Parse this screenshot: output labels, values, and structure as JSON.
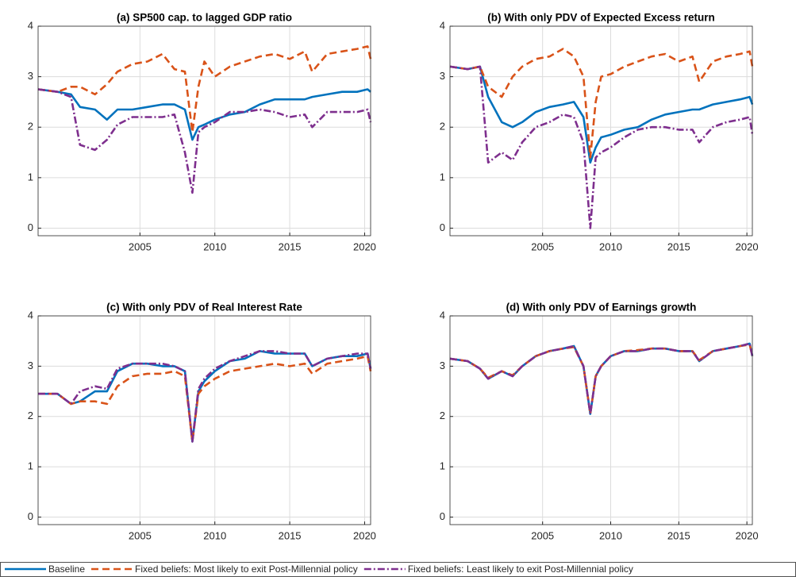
{
  "chart_data": [
    {
      "type": "line",
      "title": "(a) SP500 cap. to lagged GDP ratio",
      "x": [
        1998.2,
        1999.5,
        2000.4,
        2001,
        2002,
        2002.8,
        2003.5,
        2004.5,
        2005.5,
        2006.5,
        2007.3,
        2008,
        2008.5,
        2008.9,
        2009.3,
        2010,
        2011,
        2012,
        2013,
        2014,
        2015,
        2016,
        2016.5,
        2017.5,
        2018.5,
        2019.5,
        2020.2,
        2020.4
      ],
      "series": [
        {
          "name": "Baseline",
          "color": "#0072bd",
          "dash": "solid",
          "values": [
            2.75,
            2.7,
            2.65,
            2.4,
            2.35,
            2.15,
            2.35,
            2.35,
            2.4,
            2.45,
            2.45,
            2.35,
            1.75,
            2.0,
            2.05,
            2.15,
            2.25,
            2.3,
            2.45,
            2.55,
            2.55,
            2.55,
            2.6,
            2.65,
            2.7,
            2.7,
            2.75,
            2.7
          ]
        },
        {
          "name": "Fixed beliefs: Most likely to exit Post-Millennial policy",
          "color": "#d95319",
          "dash": "dashed",
          "values": [
            2.75,
            2.7,
            2.8,
            2.8,
            2.65,
            2.85,
            3.1,
            3.25,
            3.3,
            3.45,
            3.15,
            3.1,
            1.9,
            2.8,
            3.3,
            3.0,
            3.2,
            3.3,
            3.4,
            3.45,
            3.35,
            3.5,
            3.1,
            3.45,
            3.5,
            3.55,
            3.6,
            3.35
          ]
        },
        {
          "name": "Fixed beliefs: Least likely to exit Post-Millennial policy",
          "color": "#7e2f8e",
          "dash": "dashdot",
          "values": [
            2.75,
            2.7,
            2.6,
            1.65,
            1.55,
            1.75,
            2.05,
            2.2,
            2.2,
            2.2,
            2.25,
            1.5,
            0.7,
            1.9,
            2.0,
            2.1,
            2.3,
            2.3,
            2.35,
            2.3,
            2.2,
            2.25,
            2.0,
            2.3,
            2.3,
            2.3,
            2.35,
            2.1
          ]
        }
      ],
      "xlim": [
        1998.2,
        2020.4
      ],
      "ylim": [
        -0.15,
        4
      ],
      "xticks": [
        2005,
        2010,
        2015,
        2020
      ],
      "yticks": [
        0,
        1,
        2,
        3,
        4
      ],
      "grid": true,
      "legend": "bottom"
    },
    {
      "type": "line",
      "title": "(b) With only PDV of Expected Excess return",
      "x": [
        1998.2,
        1999.5,
        2000.4,
        2001,
        2002,
        2002.8,
        2003.5,
        2004.5,
        2005.5,
        2006.5,
        2007.3,
        2008,
        2008.5,
        2008.9,
        2009.3,
        2010,
        2011,
        2012,
        2013,
        2014,
        2015,
        2016,
        2016.5,
        2017.5,
        2018.5,
        2019.5,
        2020.2,
        2020.4
      ],
      "series": [
        {
          "color": "#0072bd",
          "dash": "solid",
          "values": [
            3.2,
            3.15,
            3.2,
            2.6,
            2.1,
            2.0,
            2.1,
            2.3,
            2.4,
            2.45,
            2.5,
            2.2,
            1.3,
            1.6,
            1.8,
            1.85,
            1.95,
            2.0,
            2.15,
            2.25,
            2.3,
            2.35,
            2.35,
            2.45,
            2.5,
            2.55,
            2.6,
            2.45
          ]
        },
        {
          "color": "#d95319",
          "dash": "dashed",
          "values": [
            3.2,
            3.15,
            3.2,
            2.8,
            2.6,
            3.0,
            3.2,
            3.35,
            3.4,
            3.55,
            3.4,
            3.0,
            1.4,
            2.5,
            3.0,
            3.05,
            3.2,
            3.3,
            3.4,
            3.45,
            3.3,
            3.4,
            2.9,
            3.3,
            3.4,
            3.45,
            3.5,
            3.2
          ]
        },
        {
          "color": "#7e2f8e",
          "dash": "dashdot",
          "values": [
            3.2,
            3.15,
            3.2,
            1.3,
            1.5,
            1.35,
            1.7,
            2.0,
            2.1,
            2.25,
            2.2,
            1.7,
            0.0,
            1.4,
            1.5,
            1.6,
            1.8,
            1.95,
            2.0,
            2.0,
            1.95,
            1.95,
            1.7,
            2.0,
            2.1,
            2.15,
            2.2,
            1.85
          ]
        }
      ],
      "xlim": [
        1998.2,
        2020.4
      ],
      "ylim": [
        -0.15,
        4
      ],
      "xticks": [
        2005,
        2010,
        2015,
        2020
      ],
      "yticks": [
        0,
        1,
        2,
        3,
        4
      ],
      "grid": true
    },
    {
      "type": "line",
      "title": "(c) With only PDV of Real Interest Rate",
      "x": [
        1998.2,
        1999.5,
        2000.4,
        2001,
        2002,
        2002.8,
        2003.5,
        2004.5,
        2005.5,
        2006.5,
        2007.3,
        2008,
        2008.5,
        2008.9,
        2009.3,
        2010,
        2011,
        2012,
        2013,
        2014,
        2015,
        2016,
        2016.5,
        2017.5,
        2018.5,
        2019.5,
        2020.2,
        2020.4
      ],
      "series": [
        {
          "color": "#0072bd",
          "dash": "solid",
          "values": [
            2.45,
            2.45,
            2.25,
            2.3,
            2.5,
            2.5,
            2.9,
            3.05,
            3.05,
            3.0,
            3.0,
            2.9,
            1.5,
            2.5,
            2.7,
            2.9,
            3.1,
            3.15,
            3.3,
            3.25,
            3.25,
            3.25,
            3.0,
            3.15,
            3.2,
            3.2,
            3.25,
            2.95
          ]
        },
        {
          "color": "#d95319",
          "dash": "dashed",
          "values": [
            2.45,
            2.45,
            2.25,
            2.3,
            2.3,
            2.25,
            2.6,
            2.8,
            2.85,
            2.85,
            2.9,
            2.8,
            1.5,
            2.45,
            2.6,
            2.75,
            2.9,
            2.95,
            3.0,
            3.05,
            3.0,
            3.05,
            2.85,
            3.05,
            3.1,
            3.15,
            3.2,
            2.9
          ]
        },
        {
          "color": "#7e2f8e",
          "dash": "dashdot",
          "values": [
            2.45,
            2.45,
            2.25,
            2.5,
            2.6,
            2.55,
            2.95,
            3.05,
            3.05,
            3.05,
            3.0,
            2.9,
            1.5,
            2.55,
            2.75,
            2.95,
            3.1,
            3.2,
            3.3,
            3.3,
            3.25,
            3.25,
            3.0,
            3.15,
            3.2,
            3.25,
            3.25,
            2.95
          ]
        }
      ],
      "xlim": [
        1998.2,
        2020.4
      ],
      "ylim": [
        -0.15,
        4
      ],
      "xticks": [
        2005,
        2010,
        2015,
        2020
      ],
      "yticks": [
        0,
        1,
        2,
        3,
        4
      ],
      "grid": true
    },
    {
      "type": "line",
      "title": "(d) With only PDV of Earnings growth",
      "x": [
        1998.2,
        1999.5,
        2000.4,
        2001,
        2002,
        2002.8,
        2003.5,
        2004.5,
        2005.5,
        2006.5,
        2007.3,
        2008,
        2008.5,
        2008.9,
        2009.3,
        2010,
        2011,
        2012,
        2013,
        2014,
        2015,
        2016,
        2016.5,
        2017.5,
        2018.5,
        2019.5,
        2020.2,
        2020.4
      ],
      "series": [
        {
          "color": "#0072bd",
          "dash": "solid",
          "values": [
            3.15,
            3.1,
            2.95,
            2.75,
            2.9,
            2.8,
            3.0,
            3.2,
            3.3,
            3.35,
            3.4,
            3.0,
            2.05,
            2.8,
            3.0,
            3.2,
            3.3,
            3.3,
            3.35,
            3.35,
            3.3,
            3.3,
            3.1,
            3.3,
            3.35,
            3.4,
            3.45,
            3.2
          ]
        },
        {
          "color": "#d95319",
          "dash": "dashed",
          "values": [
            3.15,
            3.1,
            2.95,
            2.77,
            2.9,
            2.82,
            3.0,
            3.2,
            3.3,
            3.35,
            3.38,
            3.0,
            2.05,
            2.8,
            3.0,
            3.2,
            3.3,
            3.32,
            3.35,
            3.35,
            3.3,
            3.3,
            3.12,
            3.3,
            3.35,
            3.4,
            3.43,
            3.2
          ]
        },
        {
          "color": "#7e2f8e",
          "dash": "dashdot",
          "values": [
            3.15,
            3.1,
            2.95,
            2.75,
            2.9,
            2.8,
            3.0,
            3.2,
            3.3,
            3.35,
            3.4,
            3.0,
            2.05,
            2.8,
            3.0,
            3.2,
            3.3,
            3.3,
            3.35,
            3.35,
            3.3,
            3.3,
            3.1,
            3.3,
            3.35,
            3.4,
            3.45,
            3.2
          ]
        }
      ],
      "xlim": [
        1998.2,
        2020.4
      ],
      "ylim": [
        -0.15,
        4
      ],
      "xticks": [
        2005,
        2010,
        2015,
        2020
      ],
      "yticks": [
        0,
        1,
        2,
        3,
        4
      ],
      "grid": true
    }
  ]
}
